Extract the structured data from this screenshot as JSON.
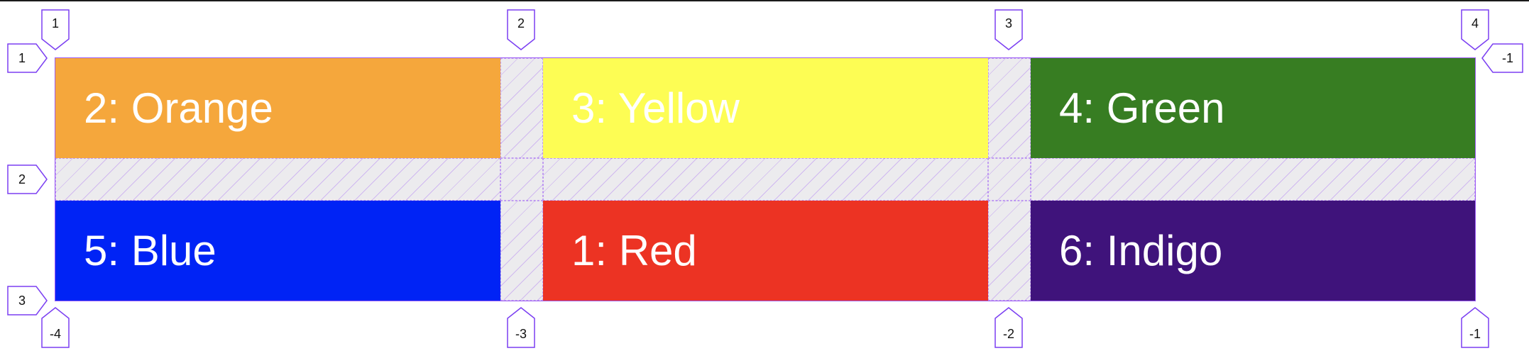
{
  "cells": [
    {
      "label": "2: Orange",
      "color": "#f5a73c"
    },
    {
      "label": "3: Yellow",
      "color": "#fdfd54"
    },
    {
      "label": "4: Green",
      "color": "#377d22"
    },
    {
      "label": "5: Blue",
      "color": "#0023f5"
    },
    {
      "label": "1: Red",
      "color": "#ec3323"
    },
    {
      "label": "6: Indigo",
      "color": "#3f137b"
    }
  ],
  "column_markers": {
    "top": [
      "1",
      "2",
      "3",
      "4"
    ],
    "bottom": [
      "-4",
      "-3",
      "-2",
      "-1"
    ]
  },
  "row_markers": {
    "left": [
      "1",
      "2",
      "3"
    ],
    "right_top": "-1"
  },
  "colors": {
    "grid_outline": "#9b59f5",
    "gap_fill": "#ecebee",
    "badge_stroke": "#7b3ff2"
  }
}
